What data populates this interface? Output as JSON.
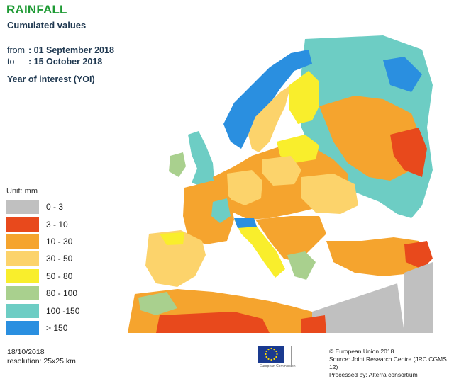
{
  "header": {
    "title": "RAINFALL",
    "subtitle": "Cumulated values",
    "from_label": "from",
    "from_value": ": 01 September 2018",
    "to_label": "to",
    "to_value": ": 15 October 2018",
    "year_of_interest": "Year of interest (YOI)"
  },
  "legend": {
    "unit": "Unit:  mm",
    "classes": [
      {
        "label": "0 - 3",
        "color": "#c0c0c0"
      },
      {
        "label": "3 - 10",
        "color": "#e8491c"
      },
      {
        "label": "10 - 30",
        "color": "#f5a42e"
      },
      {
        "label": "30 - 50",
        "color": "#fcd36b"
      },
      {
        "label": "50 - 80",
        "color": "#f9ee2c"
      },
      {
        "label": "80 - 100",
        "color": "#a9d08e"
      },
      {
        "label": "100 -150",
        "color": "#6dcdc4"
      },
      {
        "label": "> 150",
        "color": "#2a8fe0"
      }
    ]
  },
  "footer": {
    "date": "18/10/2018",
    "resolution": "resolution:  25x25 km",
    "copyright": "© European Union 2018",
    "source": "Source: Joint Research Centre (JRC CGMS 12)",
    "processed": "Processed by: Alterra consortium",
    "eu_caption": "European Commission"
  },
  "map": {
    "colors": {
      "sea": "#ffffff",
      "land_default": "#fcd36b",
      "outside_area": "#c0c0c0",
      "border": "#555555"
    }
  }
}
